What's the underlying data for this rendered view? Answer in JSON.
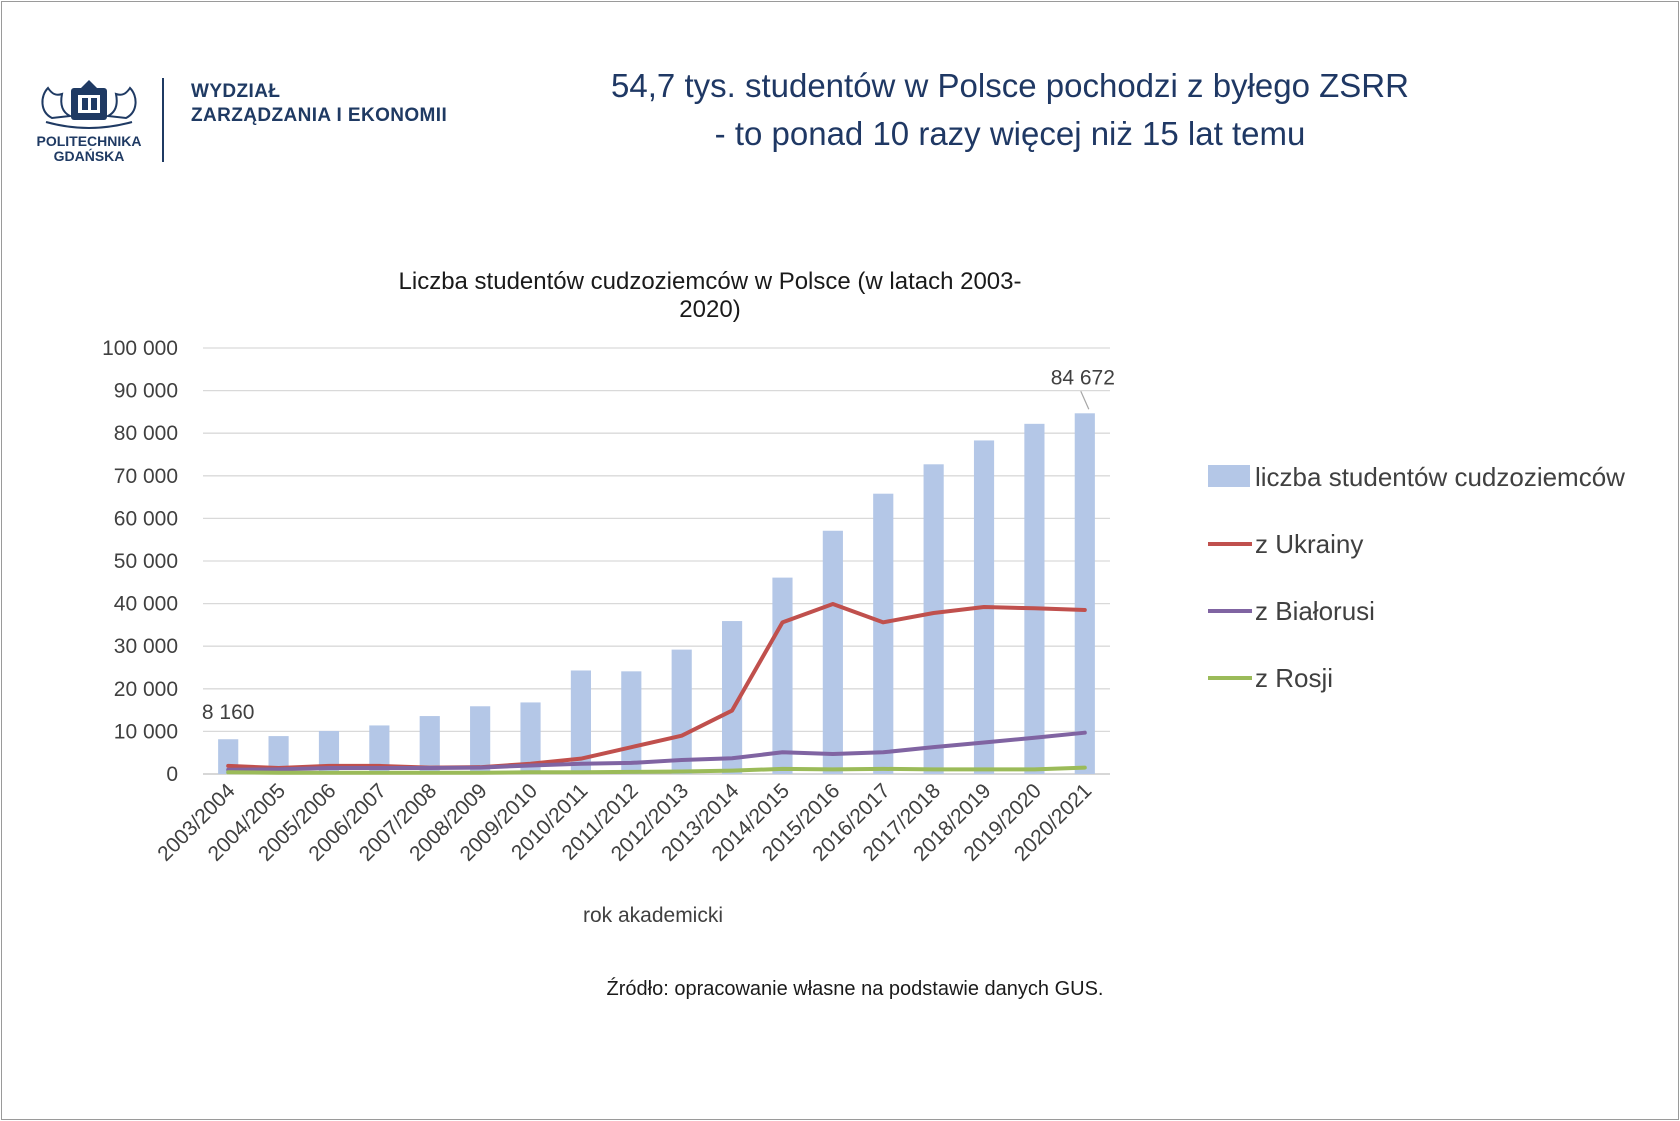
{
  "header": {
    "logo_name_line1": "POLITECHNIKA",
    "logo_name_line2": "GDAŃSKA",
    "faculty_line1": "WYDZIAŁ",
    "faculty_line2": "ZARZĄDZANIA I EKONOMII",
    "headline_line1": "54,7 tys. studentów w Polsce pochodzi z byłego ZSRR",
    "headline_line2": "- to ponad 10 razy więcej niż 15 lat temu"
  },
  "source_note": "Źródło: opracowanie własne na podstawie danych GUS.",
  "colors": {
    "bars": "#b4c7e7",
    "ukraine": "#c0504d",
    "belarus": "#8064a2",
    "russia": "#9bbb59",
    "title": "#1f3864"
  },
  "chart_data": {
    "type": "bar",
    "title": "Liczba studentów cudzoziemców w Polsce (w latach 2003-2020)",
    "xlabel": "rok akademicki",
    "ylabel": "",
    "ylim": [
      0,
      100000
    ],
    "yticks": [
      "0",
      "10 000",
      "20 000",
      "30 000",
      "40 000",
      "50 000",
      "60 000",
      "70 000",
      "80 000",
      "90 000",
      "100 000"
    ],
    "grid": true,
    "legend_position": "right",
    "categories": [
      "2003/2004",
      "2004/2005",
      "2005/2006",
      "2006/2007",
      "2007/2008",
      "2008/2009",
      "2009/2010",
      "2010/2011",
      "2011/2012",
      "2012/2013",
      "2013/2014",
      "2014/2015",
      "2015/2016",
      "2016/2017",
      "2017/2018",
      "2018/2019",
      "2019/2020",
      "2020/2021"
    ],
    "series": [
      {
        "name": "liczba studentów cudzoziemców",
        "type": "bar",
        "values": [
          8160,
          8900,
          10100,
          11400,
          13600,
          15900,
          16800,
          24300,
          24100,
          29200,
          35900,
          46100,
          57100,
          65800,
          72700,
          78300,
          82200,
          84672
        ]
      },
      {
        "name": "z Ukrainy",
        "type": "line",
        "values": [
          1900,
          1400,
          1900,
          1900,
          1500,
          1600,
          2400,
          3600,
          6300,
          9000,
          14900,
          35600,
          39900,
          35600,
          37800,
          39200,
          38900,
          38500
        ]
      },
      {
        "name": "z Białorusi",
        "type": "line",
        "values": [
          1000,
          1100,
          1400,
          1400,
          1400,
          1500,
          2000,
          2400,
          2600,
          3300,
          3700,
          5100,
          4700,
          5100,
          6300,
          7400,
          8500,
          9700
        ]
      },
      {
        "name": "z Rosji",
        "type": "line",
        "values": [
          400,
          300,
          300,
          300,
          300,
          300,
          400,
          400,
          500,
          600,
          800,
          1200,
          1100,
          1200,
          1100,
          1100,
          1100,
          1500
        ]
      }
    ],
    "data_labels": [
      {
        "series": 0,
        "index": 0,
        "text": "8 160"
      },
      {
        "series": 0,
        "index": 17,
        "text": "84 672"
      }
    ]
  }
}
